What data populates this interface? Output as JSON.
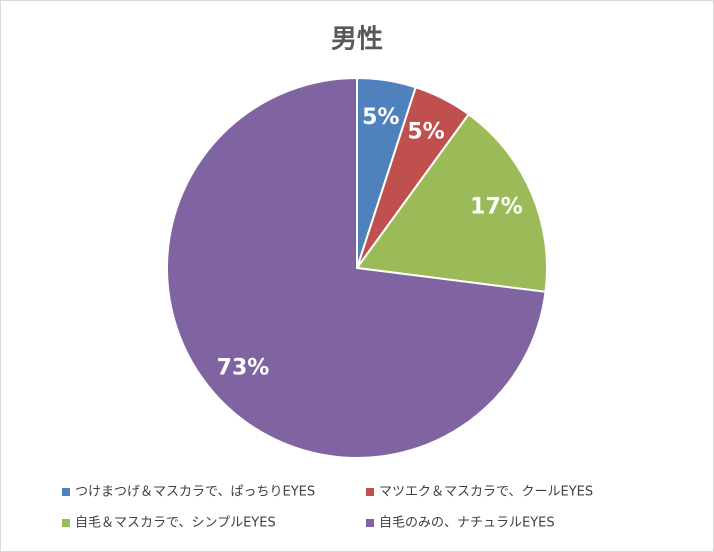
{
  "chart_data": {
    "type": "pie",
    "title": "男性",
    "categories": [
      "つけまつげ＆マスカラで、ぱっちりEYES",
      "マツエク＆マスカラで、クールEYES",
      "自毛＆マスカラで、シンプルEYES",
      "自毛のみの、ナチュラルEYES"
    ],
    "values": [
      5,
      5,
      17,
      73
    ],
    "value_labels": [
      "5%",
      "5%",
      "17%",
      "73%"
    ],
    "colors": [
      "#4f81bd",
      "#c0504d",
      "#9bbb59",
      "#8064a2"
    ],
    "legend": "bottom"
  }
}
